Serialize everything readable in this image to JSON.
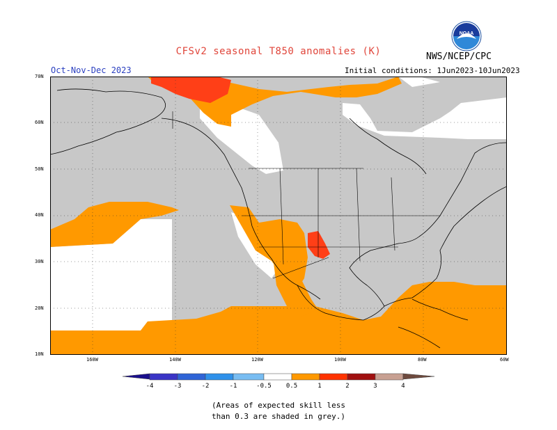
{
  "title": "CFSv2 seasonal T850 anomalies (K)",
  "agency": "NWS/NCEP/CPC",
  "logo_text": "NOAA",
  "period": "Oct-Nov-Dec 2023",
  "initial_conditions": "Initial conditions: 1Jun2023-10Jun2023",
  "lat_labels": [
    "70N",
    "60N",
    "50N",
    "40N",
    "30N",
    "20N",
    "10N"
  ],
  "lon_labels": [
    "160W",
    "140W",
    "120W",
    "100W",
    "80W",
    "60W"
  ],
  "colorbar": {
    "ticks": [
      "-4",
      "-3",
      "-2",
      "-1",
      "-0.5",
      "0.5",
      "1",
      "2",
      "3",
      "4"
    ],
    "colors": [
      "#1a0f8c",
      "#3a34c6",
      "#2f64d6",
      "#2f91ea",
      "#78bdf2",
      "#ffffff",
      "#ff9900",
      "#ff3300",
      "#e01010",
      "#a01010",
      "#c8a092",
      "#6e4a3e"
    ]
  },
  "legend_colors": {
    "grey_low_skill": "#c8c8c8",
    "anomaly_05_1": "#ff9900",
    "anomaly_1_2": "#ff3f17"
  },
  "note_lines": [
    "(Areas of expected skill less",
    "than 0.3 are shaded in grey.)"
  ]
}
